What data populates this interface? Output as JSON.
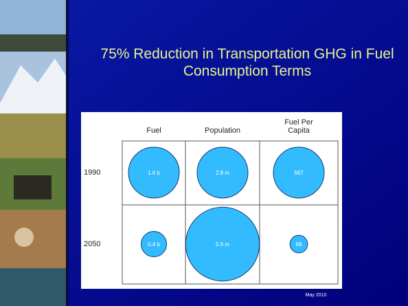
{
  "chart_data": {
    "type": "bubble",
    "title": "75% Reduction in Transportation GHG in Fuel Consumption Terms",
    "categories": [
      "Fuel",
      "Population",
      "Fuel Per Capita"
    ],
    "series": [
      {
        "name": "1990",
        "color": "#33bbff",
        "values": [
          1600000000,
          2800000,
          567
        ],
        "value_labels": [
          "1.6 b",
          "2.8 m",
          "567"
        ]
      },
      {
        "name": "2050",
        "color": "#33bbff",
        "values": [
          400000000,
          5900000,
          68
        ],
        "value_labels": [
          "0.4 b",
          "5.9 m",
          "68"
        ]
      }
    ]
  },
  "footer": "May 2010"
}
